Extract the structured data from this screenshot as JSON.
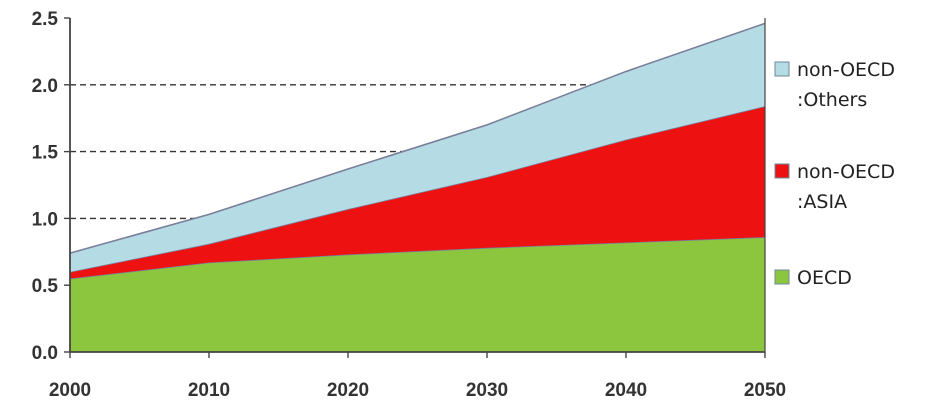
{
  "chart_data": {
    "type": "area",
    "stacked": true,
    "title": "",
    "xlabel": "",
    "ylabel": "",
    "x": [
      2000,
      2010,
      2020,
      2030,
      2040,
      2050
    ],
    "xlim": [
      2000,
      2050
    ],
    "ylim": [
      0,
      2.5
    ],
    "x_ticks": [
      "2000",
      "2010",
      "2020",
      "2030",
      "2040",
      "2050"
    ],
    "y_ticks": [
      "0.0",
      "0.5",
      "1.0",
      "1.5",
      "2.0",
      "2.5"
    ],
    "grid": "horizontal dashed lines at 1.0, 1.5, 2.0",
    "legend_position": "right",
    "series": [
      {
        "name": "OECD",
        "color": "#8cc63f",
        "values": [
          0.55,
          0.67,
          0.73,
          0.78,
          0.82,
          0.86
        ]
      },
      {
        "name": "non-OECD\n:ASIA",
        "color": "#ee1111",
        "values": [
          0.05,
          0.14,
          0.34,
          0.53,
          0.77,
          0.98
        ]
      },
      {
        "name": "non-OECD\n:Others",
        "color": "#b5dbe5",
        "values": [
          0.14,
          0.22,
          0.3,
          0.39,
          0.51,
          0.62
        ]
      }
    ]
  }
}
